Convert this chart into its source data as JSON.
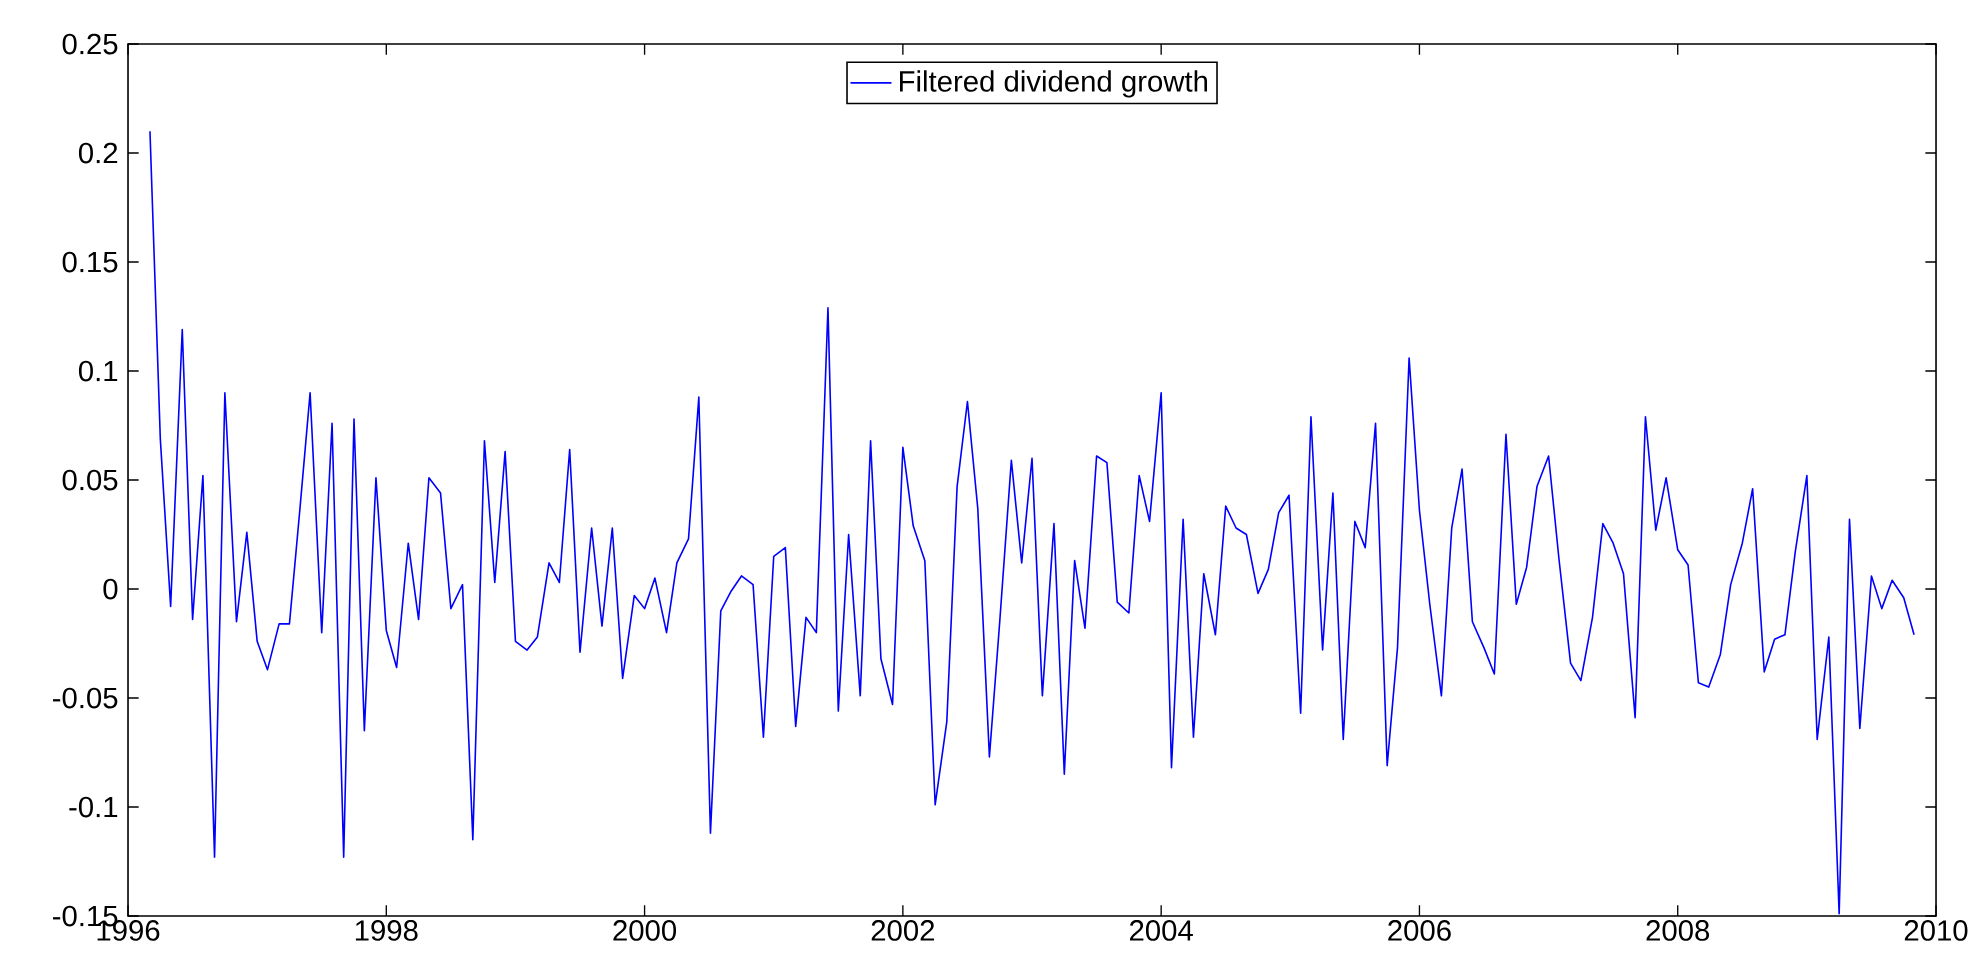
{
  "chart_data": {
    "type": "line",
    "x": [
      1996.17,
      1996.25,
      1996.33,
      1996.42,
      1996.5,
      1996.58,
      1996.67,
      1996.75,
      1996.84,
      1996.92,
      1997.0,
      1997.08,
      1997.17,
      1997.25,
      1997.33,
      1997.41,
      1997.5,
      1997.58,
      1997.67,
      1997.75,
      1997.83,
      1997.92,
      1998.0,
      1998.08,
      1998.17,
      1998.25,
      1998.33,
      1998.42,
      1998.5,
      1998.59,
      1998.67,
      1998.76,
      1998.84,
      1998.92,
      1999.0,
      1999.09,
      1999.17,
      1999.26,
      1999.34,
      1999.42,
      1999.5,
      1999.59,
      1999.67,
      1999.75,
      1999.83,
      1999.92,
      2000.0,
      2000.08,
      2000.17,
      2000.25,
      2000.34,
      2000.42,
      2000.51,
      2000.59,
      2000.67,
      2000.75,
      2000.84,
      2000.92,
      2001.0,
      2001.09,
      2001.17,
      2001.25,
      2001.33,
      2001.42,
      2001.5,
      2001.58,
      2001.67,
      2001.75,
      2001.83,
      2001.92,
      2002.0,
      2002.08,
      2002.17,
      2002.25,
      2002.34,
      2002.42,
      2002.5,
      2002.58,
      2002.67,
      2002.75,
      2002.84,
      2002.92,
      2003.0,
      2003.08,
      2003.17,
      2003.25,
      2003.33,
      2003.41,
      2003.5,
      2003.58,
      2003.66,
      2003.75,
      2003.83,
      2003.91,
      2004.0,
      2004.08,
      2004.17,
      2004.25,
      2004.33,
      2004.42,
      2004.5,
      2004.58,
      2004.66,
      2004.75,
      2004.83,
      2004.91,
      2004.99,
      2005.08,
      2005.16,
      2005.25,
      2005.33,
      2005.41,
      2005.5,
      2005.58,
      2005.66,
      2005.75,
      2005.83,
      2005.92,
      2006.0,
      2006.08,
      2006.17,
      2006.25,
      2006.33,
      2006.41,
      2006.5,
      2006.58,
      2006.67,
      2006.75,
      2006.83,
      2006.91,
      2007.0,
      2007.08,
      2007.17,
      2007.25,
      2007.34,
      2007.42,
      2007.5,
      2007.58,
      2007.67,
      2007.75,
      2007.83,
      2007.91,
      2008.0,
      2008.08,
      2008.16,
      2008.24,
      2008.33,
      2008.41,
      2008.5,
      2008.58,
      2008.67,
      2008.75,
      2008.83,
      2008.91,
      2009.0,
      2009.08,
      2009.17,
      2009.25,
      2009.33,
      2009.41,
      2009.5,
      2009.58,
      2009.66,
      2009.75,
      2009.83
    ],
    "series": [
      {
        "name": "Filtered dividend growth",
        "color": "#0000ff",
        "values": [
          0.21,
          0.069,
          -0.008,
          0.119,
          -0.014,
          0.052,
          -0.123,
          0.09,
          -0.015,
          0.026,
          -0.024,
          -0.037,
          -0.016,
          -0.016,
          0.036,
          0.09,
          -0.02,
          0.076,
          -0.123,
          0.078,
          -0.065,
          0.051,
          -0.019,
          -0.036,
          0.021,
          -0.014,
          0.051,
          0.044,
          -0.009,
          0.002,
          -0.115,
          0.068,
          0.003,
          0.063,
          -0.024,
          -0.028,
          -0.022,
          0.012,
          0.003,
          0.064,
          -0.029,
          0.028,
          -0.017,
          0.028,
          -0.041,
          -0.003,
          -0.009,
          0.005,
          -0.02,
          0.012,
          0.023,
          0.088,
          -0.112,
          -0.01,
          -0.001,
          0.006,
          0.002,
          -0.068,
          0.015,
          0.019,
          -0.063,
          -0.013,
          -0.02,
          0.129,
          -0.056,
          0.025,
          -0.049,
          0.068,
          -0.032,
          -0.053,
          0.065,
          0.029,
          0.013,
          -0.099,
          -0.061,
          0.047,
          0.086,
          0.037,
          -0.077,
          -0.015,
          0.059,
          0.012,
          0.06,
          -0.049,
          0.03,
          -0.085,
          0.013,
          -0.018,
          0.061,
          0.058,
          -0.006,
          -0.011,
          0.052,
          0.031,
          0.09,
          -0.082,
          0.032,
          -0.068,
          0.007,
          -0.021,
          0.038,
          0.028,
          0.025,
          -0.002,
          0.009,
          0.035,
          0.043,
          -0.057,
          0.079,
          -0.028,
          0.044,
          -0.069,
          0.031,
          0.019,
          0.076,
          -0.081,
          -0.027,
          0.106,
          0.036,
          -0.007,
          -0.049,
          0.028,
          0.055,
          -0.015,
          -0.027,
          -0.039,
          0.071,
          -0.007,
          0.01,
          0.047,
          0.061,
          0.014,
          -0.034,
          -0.042,
          -0.013,
          0.03,
          0.021,
          0.007,
          -0.059,
          0.079,
          0.027,
          0.051,
          0.018,
          0.011,
          -0.043,
          -0.045,
          -0.03,
          0.002,
          0.021,
          0.046,
          -0.038,
          -0.023,
          -0.021,
          0.017,
          0.052,
          -0.069,
          -0.022,
          -0.149,
          0.032,
          -0.064,
          0.006,
          -0.009,
          0.004,
          -0.004,
          -0.021
        ]
      }
    ],
    "xlim": [
      1996,
      2010
    ],
    "xticks": [
      1996,
      1998,
      2000,
      2002,
      2004,
      2006,
      2008,
      2010
    ],
    "ylim": [
      -0.15,
      0.25
    ],
    "yticks": [
      -0.15,
      -0.1,
      -0.05,
      0,
      0.05,
      0.1,
      0.15,
      0.2,
      0.25
    ],
    "legend": "top",
    "marker": "none",
    "line_style": "solid"
  }
}
